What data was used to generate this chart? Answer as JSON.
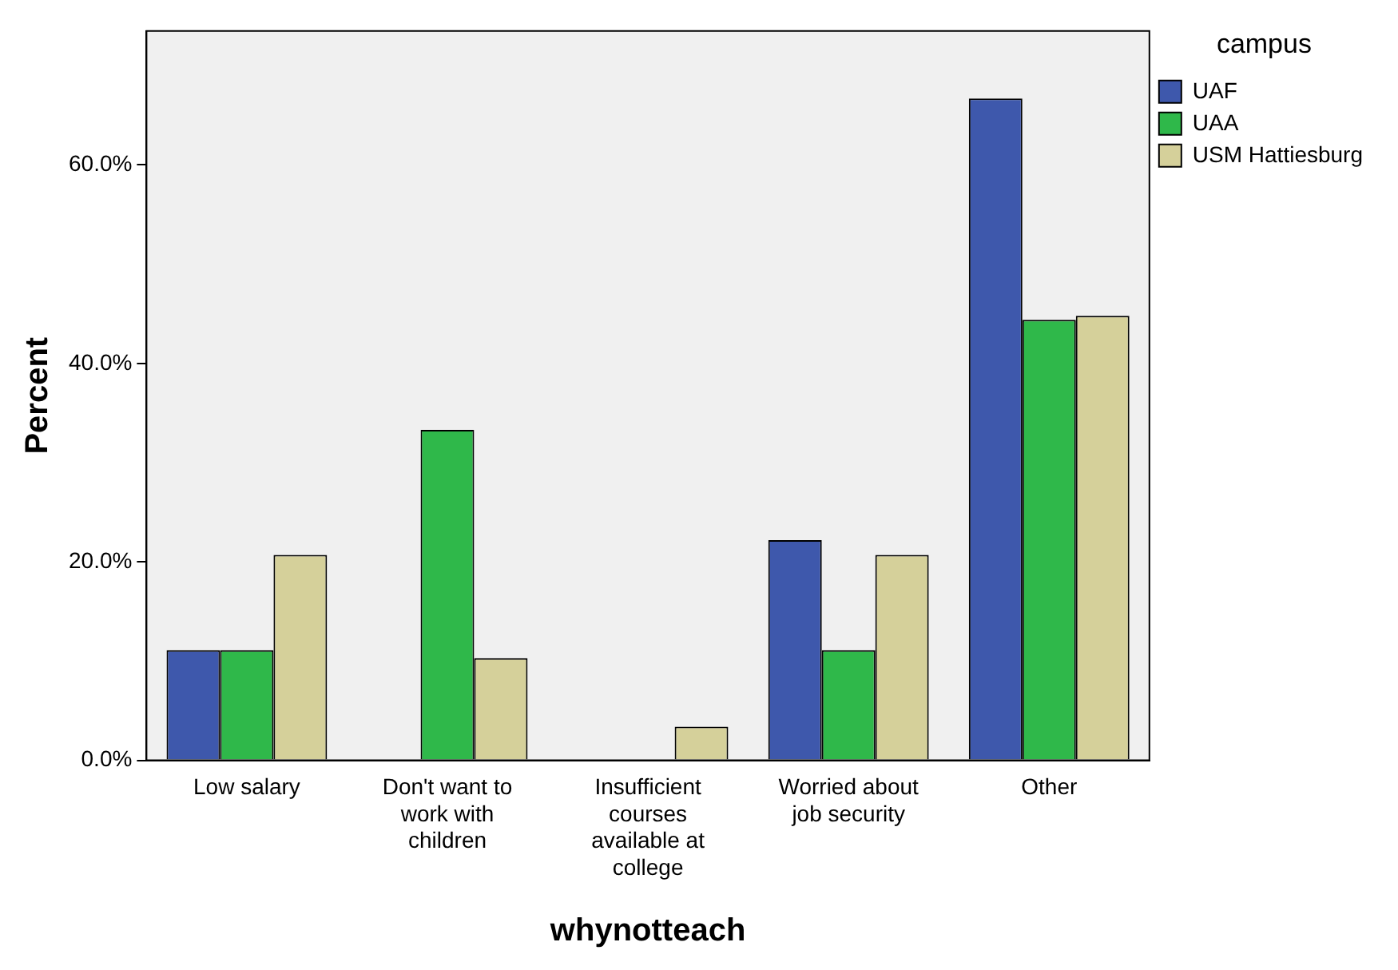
{
  "chart_data": {
    "type": "bar",
    "xlabel": "whynotteach",
    "ylabel": "Percent",
    "legend_title": "campus",
    "legend": "right",
    "categories": [
      "Low salary",
      "Don't want to work with children",
      "Insufficient courses available at college",
      "Worried about job security",
      "Other"
    ],
    "series": [
      {
        "name": "UAF",
        "color": "#3e58ac",
        "values": [
          11.1,
          0,
          0,
          22.2,
          66.7
        ]
      },
      {
        "name": "UAA",
        "color": "#2fb84a",
        "values": [
          11.1,
          33.3,
          0,
          11.1,
          44.4
        ]
      },
      {
        "name": "USM Hattiesburg",
        "color": "#d5d09a",
        "values": [
          20.7,
          10.3,
          3.4,
          20.7,
          44.8
        ]
      }
    ],
    "ylim": [
      0,
      73.5
    ],
    "yticks": [
      {
        "value": 0,
        "label": "0.0%"
      },
      {
        "value": 20,
        "label": "20.0%"
      },
      {
        "value": 40,
        "label": "40.0%"
      },
      {
        "value": 60,
        "label": "60.0%"
      }
    ],
    "grid": false
  }
}
